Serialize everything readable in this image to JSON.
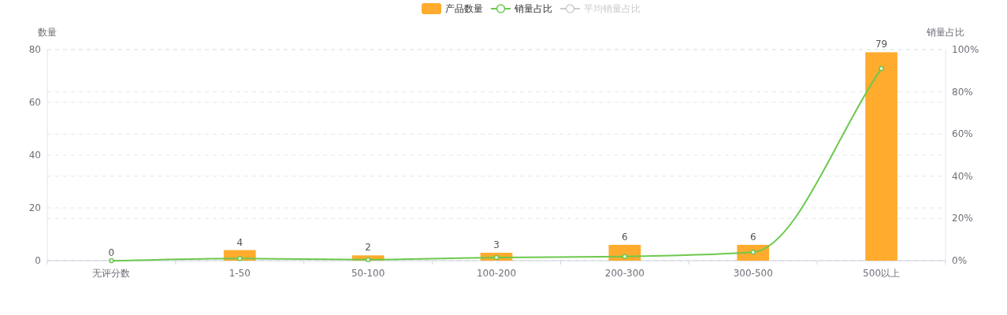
{
  "chart_data": {
    "type": "bar",
    "categories": [
      "无评分数",
      "1-50",
      "50-100",
      "100-200",
      "200-300",
      "300-500",
      "500以上"
    ],
    "ylabel": "数量",
    "y2label": "销量占比",
    "ylim": [
      0,
      80
    ],
    "yticks": [
      0,
      20,
      40,
      60,
      80
    ],
    "y2lim": [
      0,
      100
    ],
    "y2ticks": [
      {
        "value": 0,
        "label": "0%"
      },
      {
        "value": 20,
        "label": "20%"
      },
      {
        "value": 40,
        "label": "40%"
      },
      {
        "value": 60,
        "label": "60%"
      },
      {
        "value": 80,
        "label": "80%"
      },
      {
        "value": 100,
        "label": "100%"
      }
    ],
    "grid": true,
    "legend": "top",
    "marker": "circle",
    "line_style": "solid",
    "series": [
      {
        "name": "产品数量",
        "color": "#ffab2d",
        "values": [
          0,
          4,
          2,
          3,
          6,
          6,
          79
        ],
        "value_labels": [
          "0",
          "4",
          "2",
          "3",
          "6",
          "6",
          "79"
        ]
      },
      {
        "name": "销量占比",
        "type": "line",
        "axis": "y2",
        "color": "#6cc94d",
        "values": [
          0,
          1,
          0.5,
          1.5,
          2,
          4,
          91
        ]
      },
      {
        "name": "平均销量占比",
        "type": "line",
        "axis": "y2",
        "color": "#cccccc",
        "values": [
          null,
          null,
          null,
          null,
          null,
          null,
          null
        ]
      }
    ]
  }
}
